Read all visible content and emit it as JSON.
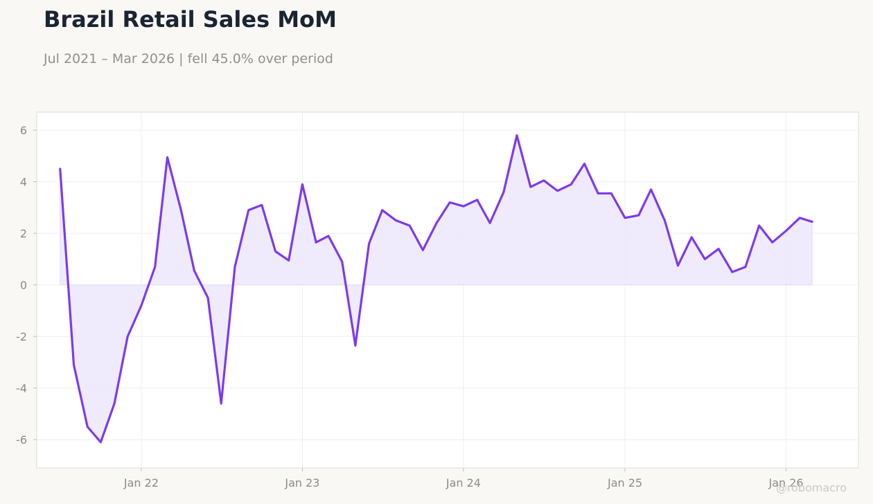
{
  "header": {
    "title": "Brazil Retail Sales MoM",
    "subtitle": "Jul 2021 – Mar 2026 | fell 45.0% over period"
  },
  "watermark": "@robomacro",
  "colors": {
    "background": "#f9f8f4",
    "plot_background": "#ffffff",
    "line": "#7c3aed",
    "fill": "#ede7fb",
    "grid": "#eeeeee",
    "axis_text": "#8a8a8a",
    "title": "#1b2434"
  },
  "chart_data": {
    "type": "area",
    "title": "Brazil Retail Sales MoM",
    "subtitle": "Jul 2021 – Mar 2026 | fell 45.0% over period",
    "xlabel": "",
    "ylabel": "",
    "ylim": [
      -7.1,
      6.7
    ],
    "yticks": [
      -6,
      -4,
      -2,
      0,
      2,
      4,
      6
    ],
    "ytick_labels": [
      "-6",
      "-4",
      "-2",
      "0",
      "2",
      "4",
      "6"
    ],
    "xticks": [
      "2022-01-01",
      "2023-01-01",
      "2024-01-01",
      "2025-01-01",
      "2026-01-01"
    ],
    "xtick_labels": [
      "Jan 22",
      "Jan 23",
      "Jan 24",
      "Jan 25",
      "Jan 26"
    ],
    "xlim": [
      "2021-05-09",
      "2026-06-14"
    ],
    "grid": true,
    "legend": "none",
    "series": [
      {
        "x": [
          "2021-07-01",
          "2021-08-01",
          "2021-09-01",
          "2021-10-01",
          "2021-11-01",
          "2021-12-01",
          "2022-01-01",
          "2022-02-01",
          "2022-03-01",
          "2022-04-01",
          "2022-05-01",
          "2022-06-01",
          "2022-07-01",
          "2022-08-01",
          "2022-09-01",
          "2022-10-01",
          "2022-11-01",
          "2022-12-01",
          "2023-01-01",
          "2023-02-01",
          "2023-03-01",
          "2023-04-01",
          "2023-05-01",
          "2023-06-01",
          "2023-07-01",
          "2023-08-01",
          "2023-09-01",
          "2023-10-01",
          "2023-11-01",
          "2023-12-01",
          "2024-01-01",
          "2024-02-01",
          "2024-03-01",
          "2024-04-01",
          "2024-05-01",
          "2024-06-01",
          "2024-07-01",
          "2024-08-01",
          "2024-09-01",
          "2024-10-01",
          "2024-11-01",
          "2024-12-01",
          "2025-01-01",
          "2025-02-01",
          "2025-03-01",
          "2025-04-01",
          "2025-05-01",
          "2025-06-01",
          "2025-07-01",
          "2025-08-01",
          "2025-09-01",
          "2025-10-01",
          "2025-11-01",
          "2025-12-01",
          "2026-01-01",
          "2026-02-01",
          "2026-03-01"
        ],
        "values": [
          4.5,
          -3.1,
          -5.5,
          -6.1,
          -4.6,
          -2.0,
          -0.8,
          0.7,
          4.95,
          2.9,
          0.55,
          -0.5,
          -4.6,
          0.7,
          2.9,
          3.1,
          1.3,
          0.95,
          3.9,
          1.65,
          1.9,
          0.9,
          -2.35,
          1.6,
          2.9,
          2.5,
          2.3,
          1.35,
          2.4,
          3.2,
          3.05,
          3.3,
          2.4,
          3.6,
          5.8,
          3.8,
          4.05,
          3.65,
          3.9,
          4.7,
          3.55,
          3.55,
          2.6,
          2.7,
          3.7,
          2.5,
          0.75,
          1.85,
          1.0,
          1.4,
          0.5,
          0.7,
          2.3,
          1.65,
          2.1,
          2.6,
          2.45
        ]
      }
    ]
  }
}
